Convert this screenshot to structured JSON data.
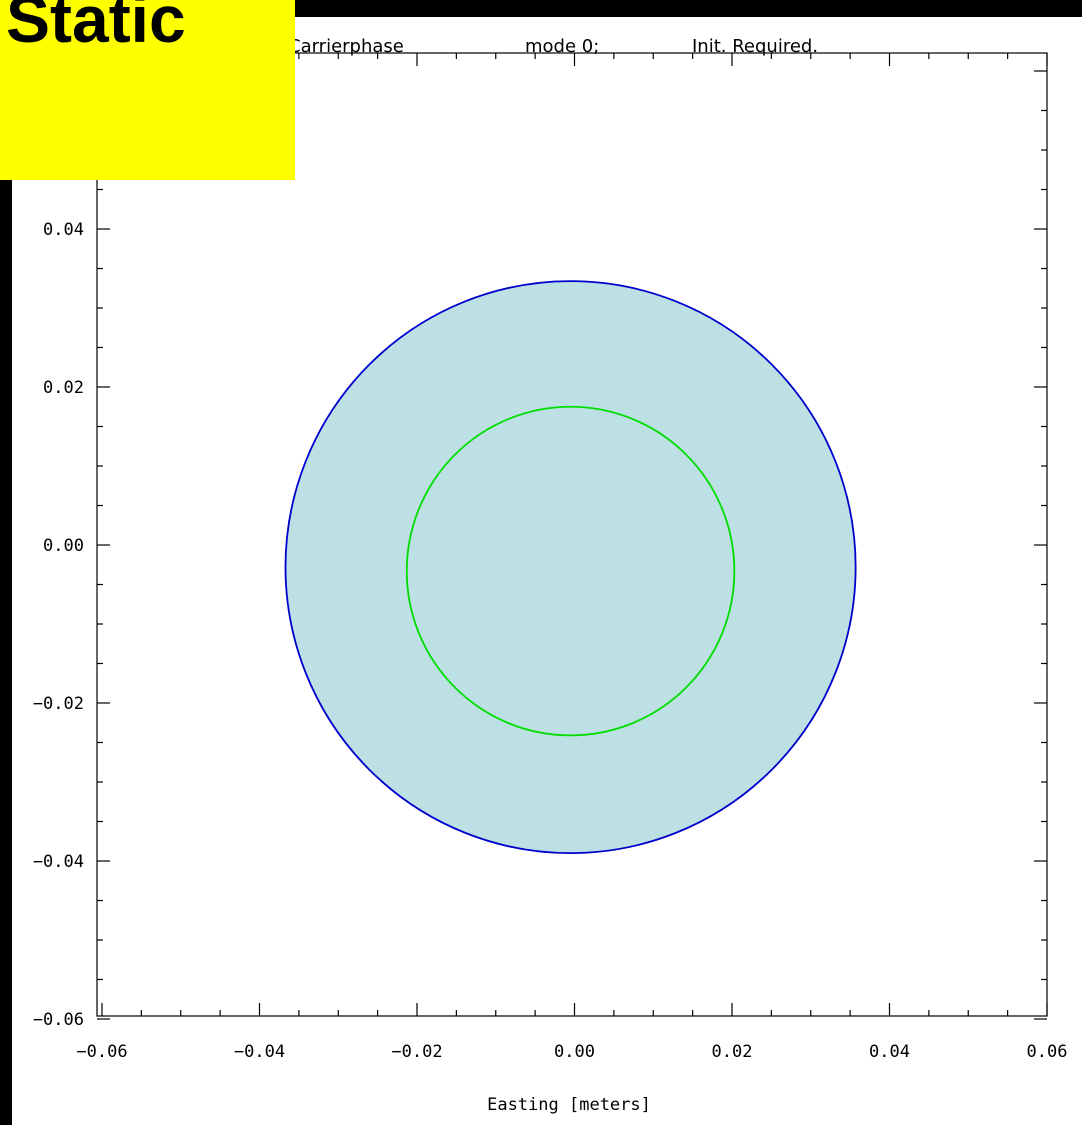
{
  "badge": {
    "label": "Static"
  },
  "header": {
    "parts": [
      "Carrierphase",
      "mode 0;",
      "Init. Required."
    ]
  },
  "colors": {
    "outer_circle_fill": "#bde0e4",
    "outer_circle_stroke": "#0000cc",
    "inner_circle_stroke": "#00dd00",
    "badge": "#ffff00"
  },
  "chart_data": {
    "type": "scatter",
    "title": "Carrierphase mode 0; Init. Required.",
    "xlabel": "Easting [meters]",
    "ylabel": "",
    "xlim": [
      -0.06,
      0.06
    ],
    "ylim": [
      -0.06,
      0.04
    ],
    "x_ticks": [
      "-0.06",
      "-0.04",
      "-0.02",
      "0.00",
      "0.02",
      "0.04",
      "0.06"
    ],
    "y_ticks": [
      "0.04",
      "0.02",
      "0.00",
      "-0.02",
      "-0.04",
      "-0.06"
    ],
    "grid": false,
    "series": [
      {
        "shape": "circle",
        "center": [
          -0.0005,
          -0.0028
        ],
        "radius": 0.0362,
        "filled": true
      },
      {
        "shape": "circle",
        "center": [
          -0.0005,
          -0.0033
        ],
        "radius": 0.0208,
        "filled": false
      }
    ]
  }
}
